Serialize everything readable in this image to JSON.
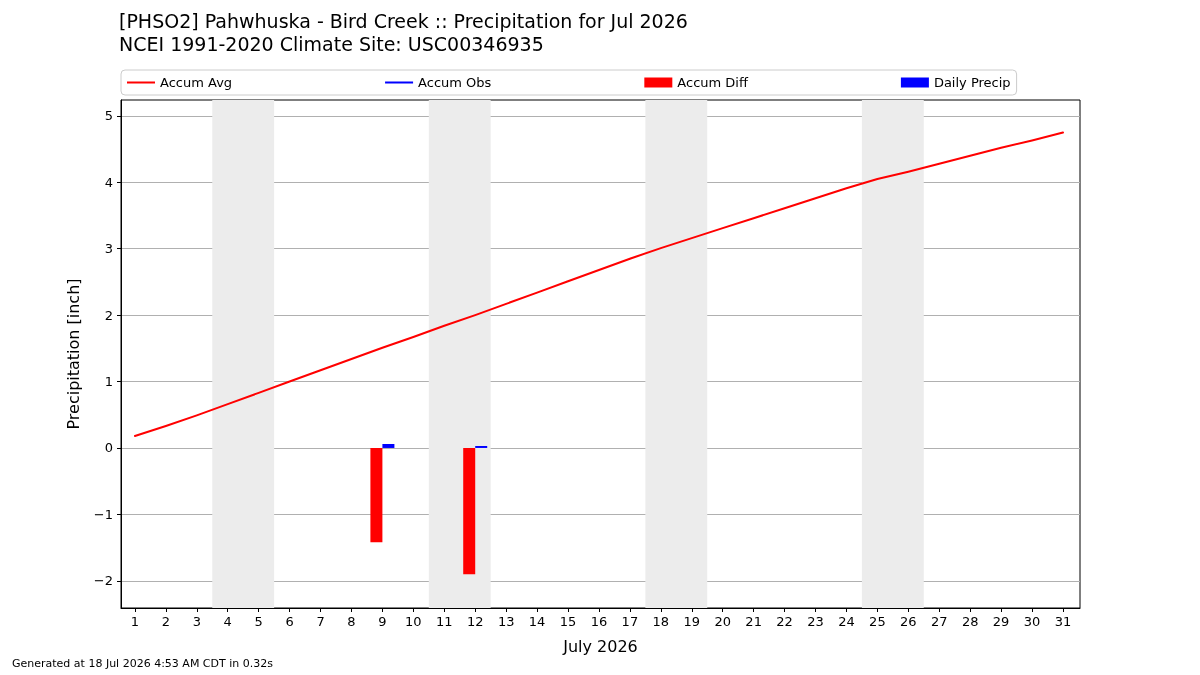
{
  "chart_data": {
    "type": "line",
    "title": "[PHSO2] Pahwhuska - Bird Creek :: Precipitation for Jul 2026",
    "subtitle": "NCEI 1991-2020 Climate Site: USC00346935",
    "xlabel": "July 2026",
    "ylabel": "Precipitation [inch]",
    "x": [
      1,
      2,
      3,
      4,
      5,
      6,
      7,
      8,
      9,
      10,
      11,
      12,
      13,
      14,
      15,
      16,
      17,
      18,
      19,
      20,
      21,
      22,
      23,
      24,
      25,
      26,
      27,
      28,
      29,
      30,
      31
    ],
    "series": [
      {
        "name": "Accum Avg",
        "color": "#ff0000",
        "values": [
          0.18,
          0.33,
          0.49,
          0.66,
          0.83,
          1.0,
          1.17,
          1.34,
          1.51,
          1.67,
          1.84,
          2.0,
          2.17,
          2.34,
          2.51,
          2.68,
          2.85,
          3.01,
          3.16,
          3.31,
          3.46,
          3.61,
          3.76,
          3.91,
          4.05,
          4.16,
          4.28,
          4.4,
          4.52,
          4.63,
          4.75
        ]
      },
      {
        "name": "Accum Obs",
        "color": "#0000ff",
        "values": [
          null,
          null,
          null,
          null,
          null,
          null,
          null,
          null,
          null,
          null,
          null,
          null,
          null,
          null,
          null,
          null,
          null,
          null,
          null,
          null,
          null,
          null,
          null,
          null,
          null,
          null,
          null,
          null,
          null,
          null,
          null
        ]
      },
      {
        "name": "Accum Diff",
        "type": "bar",
        "color": "#ff0000",
        "values": [
          null,
          null,
          null,
          null,
          null,
          null,
          null,
          null,
          -1.42,
          null,
          null,
          -1.9,
          null,
          null,
          null,
          null,
          null,
          null,
          null,
          null,
          null,
          null,
          null,
          null,
          null,
          null,
          null,
          null,
          null,
          null,
          null
        ]
      },
      {
        "name": "Daily Precip",
        "type": "bar",
        "color": "#0000ff",
        "values": [
          null,
          null,
          null,
          null,
          null,
          null,
          null,
          null,
          0.06,
          null,
          null,
          0.03,
          null,
          null,
          null,
          null,
          null,
          null,
          null,
          null,
          null,
          null,
          null,
          null,
          null,
          null,
          null,
          null,
          null,
          null,
          null
        ]
      }
    ],
    "xlim": [
      0.55,
      31.55
    ],
    "xticks": [
      1,
      2,
      3,
      4,
      5,
      6,
      7,
      8,
      9,
      10,
      11,
      12,
      13,
      14,
      15,
      16,
      17,
      18,
      19,
      20,
      21,
      22,
      23,
      24,
      25,
      26,
      27,
      28,
      29,
      30,
      31
    ],
    "ylim": [
      -2.41,
      5.24
    ],
    "yticks": [
      {
        "value": -2,
        "label": "−2"
      },
      {
        "value": -1,
        "label": "−1"
      },
      0,
      1,
      2,
      3,
      4,
      5
    ],
    "bands": [
      {
        "axis": "x",
        "from": 3.5,
        "to": 5.5,
        "color": "#ececec"
      },
      {
        "axis": "x",
        "from": 10.5,
        "to": 12.5,
        "color": "#ececec"
      },
      {
        "axis": "x",
        "from": 17.5,
        "to": 19.5,
        "color": "#ececec"
      },
      {
        "axis": "x",
        "from": 24.5,
        "to": 26.5,
        "color": "#ececec"
      }
    ],
    "grid": "y",
    "legend": "top",
    "annotations": [
      "Generated at 18 Jul 2026 4:53 AM CDT in 0.32s"
    ]
  }
}
